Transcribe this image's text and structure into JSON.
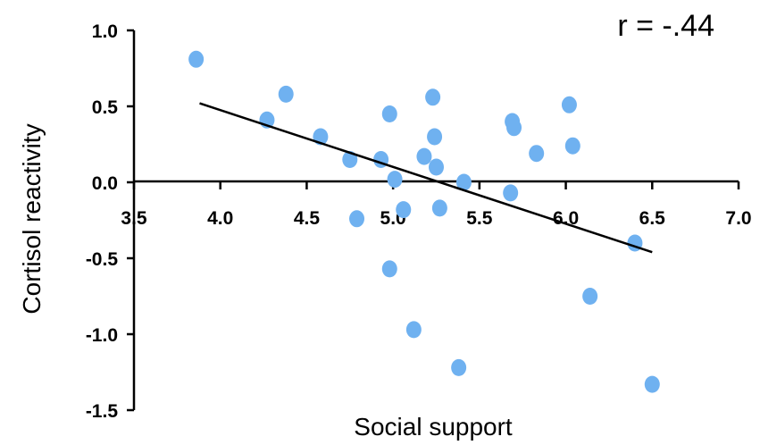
{
  "chart_data": {
    "type": "scatter",
    "xlabel": "Social support",
    "ylabel": "Cortisol reactivity",
    "annotation": "r = -.44",
    "xlim": [
      3.5,
      7.0
    ],
    "ylim": [
      -1.5,
      1.0
    ],
    "x_ticks": [
      "3.5",
      "4.0",
      "4.5",
      "5.0",
      "5.5",
      "6.0",
      "6.5",
      "7.0"
    ],
    "y_ticks": [
      "1.0",
      "0.5",
      "0.0",
      "-0.5",
      "-1.0",
      "-1.5"
    ],
    "grid": false,
    "point_color": "#6fb1f0",
    "points": [
      {
        "x": 3.86,
        "y": 0.81
      },
      {
        "x": 4.27,
        "y": 0.41
      },
      {
        "x": 4.38,
        "y": 0.58
      },
      {
        "x": 4.58,
        "y": 0.3
      },
      {
        "x": 4.75,
        "y": 0.15
      },
      {
        "x": 4.79,
        "y": -0.24
      },
      {
        "x": 4.93,
        "y": 0.15
      },
      {
        "x": 4.98,
        "y": 0.45
      },
      {
        "x": 5.01,
        "y": 0.02
      },
      {
        "x": 5.06,
        "y": -0.18
      },
      {
        "x": 4.98,
        "y": -0.57
      },
      {
        "x": 5.12,
        "y": -0.97
      },
      {
        "x": 5.18,
        "y": 0.17
      },
      {
        "x": 5.23,
        "y": 0.56
      },
      {
        "x": 5.24,
        "y": 0.3
      },
      {
        "x": 5.25,
        "y": 0.1
      },
      {
        "x": 5.27,
        "y": -0.17
      },
      {
        "x": 5.38,
        "y": -1.22
      },
      {
        "x": 5.41,
        "y": 0.0
      },
      {
        "x": 5.68,
        "y": -0.07
      },
      {
        "x": 5.69,
        "y": 0.4
      },
      {
        "x": 5.7,
        "y": 0.36
      },
      {
        "x": 5.83,
        "y": 0.19
      },
      {
        "x": 6.02,
        "y": 0.51
      },
      {
        "x": 6.04,
        "y": 0.24
      },
      {
        "x": 6.14,
        "y": -0.75
      },
      {
        "x": 6.4,
        "y": -0.4
      },
      {
        "x": 6.5,
        "y": -1.33
      }
    ],
    "trendline": {
      "x1": 3.88,
      "y1": 0.52,
      "x2": 6.5,
      "y2": -0.46,
      "color": "#000000"
    }
  }
}
